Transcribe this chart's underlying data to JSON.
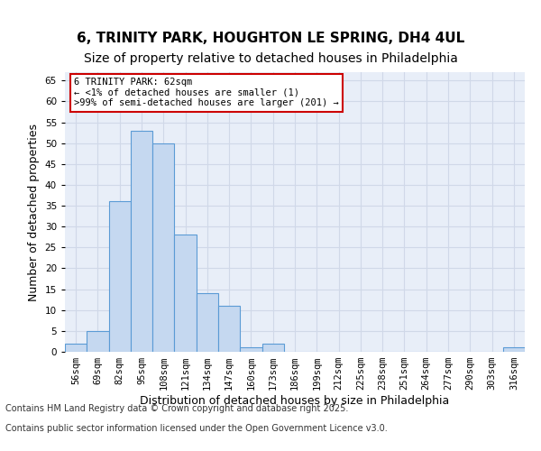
{
  "title_line1": "6, TRINITY PARK, HOUGHTON LE SPRING, DH4 4UL",
  "title_line2": "Size of property relative to detached houses in Philadelphia",
  "xlabel": "Distribution of detached houses by size in Philadelphia",
  "ylabel": "Number of detached properties",
  "categories": [
    "56sqm",
    "69sqm",
    "82sqm",
    "95sqm",
    "108sqm",
    "121sqm",
    "134sqm",
    "147sqm",
    "160sqm",
    "173sqm",
    "186sqm",
    "199sqm",
    "212sqm",
    "225sqm",
    "238sqm",
    "251sqm",
    "264sqm",
    "277sqm",
    "290sqm",
    "303sqm",
    "316sqm"
  ],
  "values": [
    2,
    5,
    36,
    53,
    50,
    28,
    14,
    11,
    1,
    2,
    0,
    0,
    0,
    0,
    0,
    0,
    0,
    0,
    0,
    0,
    1
  ],
  "bar_color": "#c5d8f0",
  "bar_edge_color": "#5b9bd5",
  "annotation_text": "6 TRINITY PARK: 62sqm\n← <1% of detached houses are smaller (1)\n>99% of semi-detached houses are larger (201) →",
  "annotation_box_color": "#ffffff",
  "annotation_box_edge": "#cc0000",
  "ylim": [
    0,
    67
  ],
  "yticks": [
    0,
    5,
    10,
    15,
    20,
    25,
    30,
    35,
    40,
    45,
    50,
    55,
    60,
    65
  ],
  "grid_color": "#d0d8e8",
  "background_color": "#e8eef8",
  "footer_line1": "Contains HM Land Registry data © Crown copyright and database right 2025.",
  "footer_line2": "Contains public sector information licensed under the Open Government Licence v3.0.",
  "title_fontsize": 11,
  "subtitle_fontsize": 10,
  "xlabel_fontsize": 9,
  "ylabel_fontsize": 9,
  "tick_fontsize": 7.5,
  "footer_fontsize": 7
}
